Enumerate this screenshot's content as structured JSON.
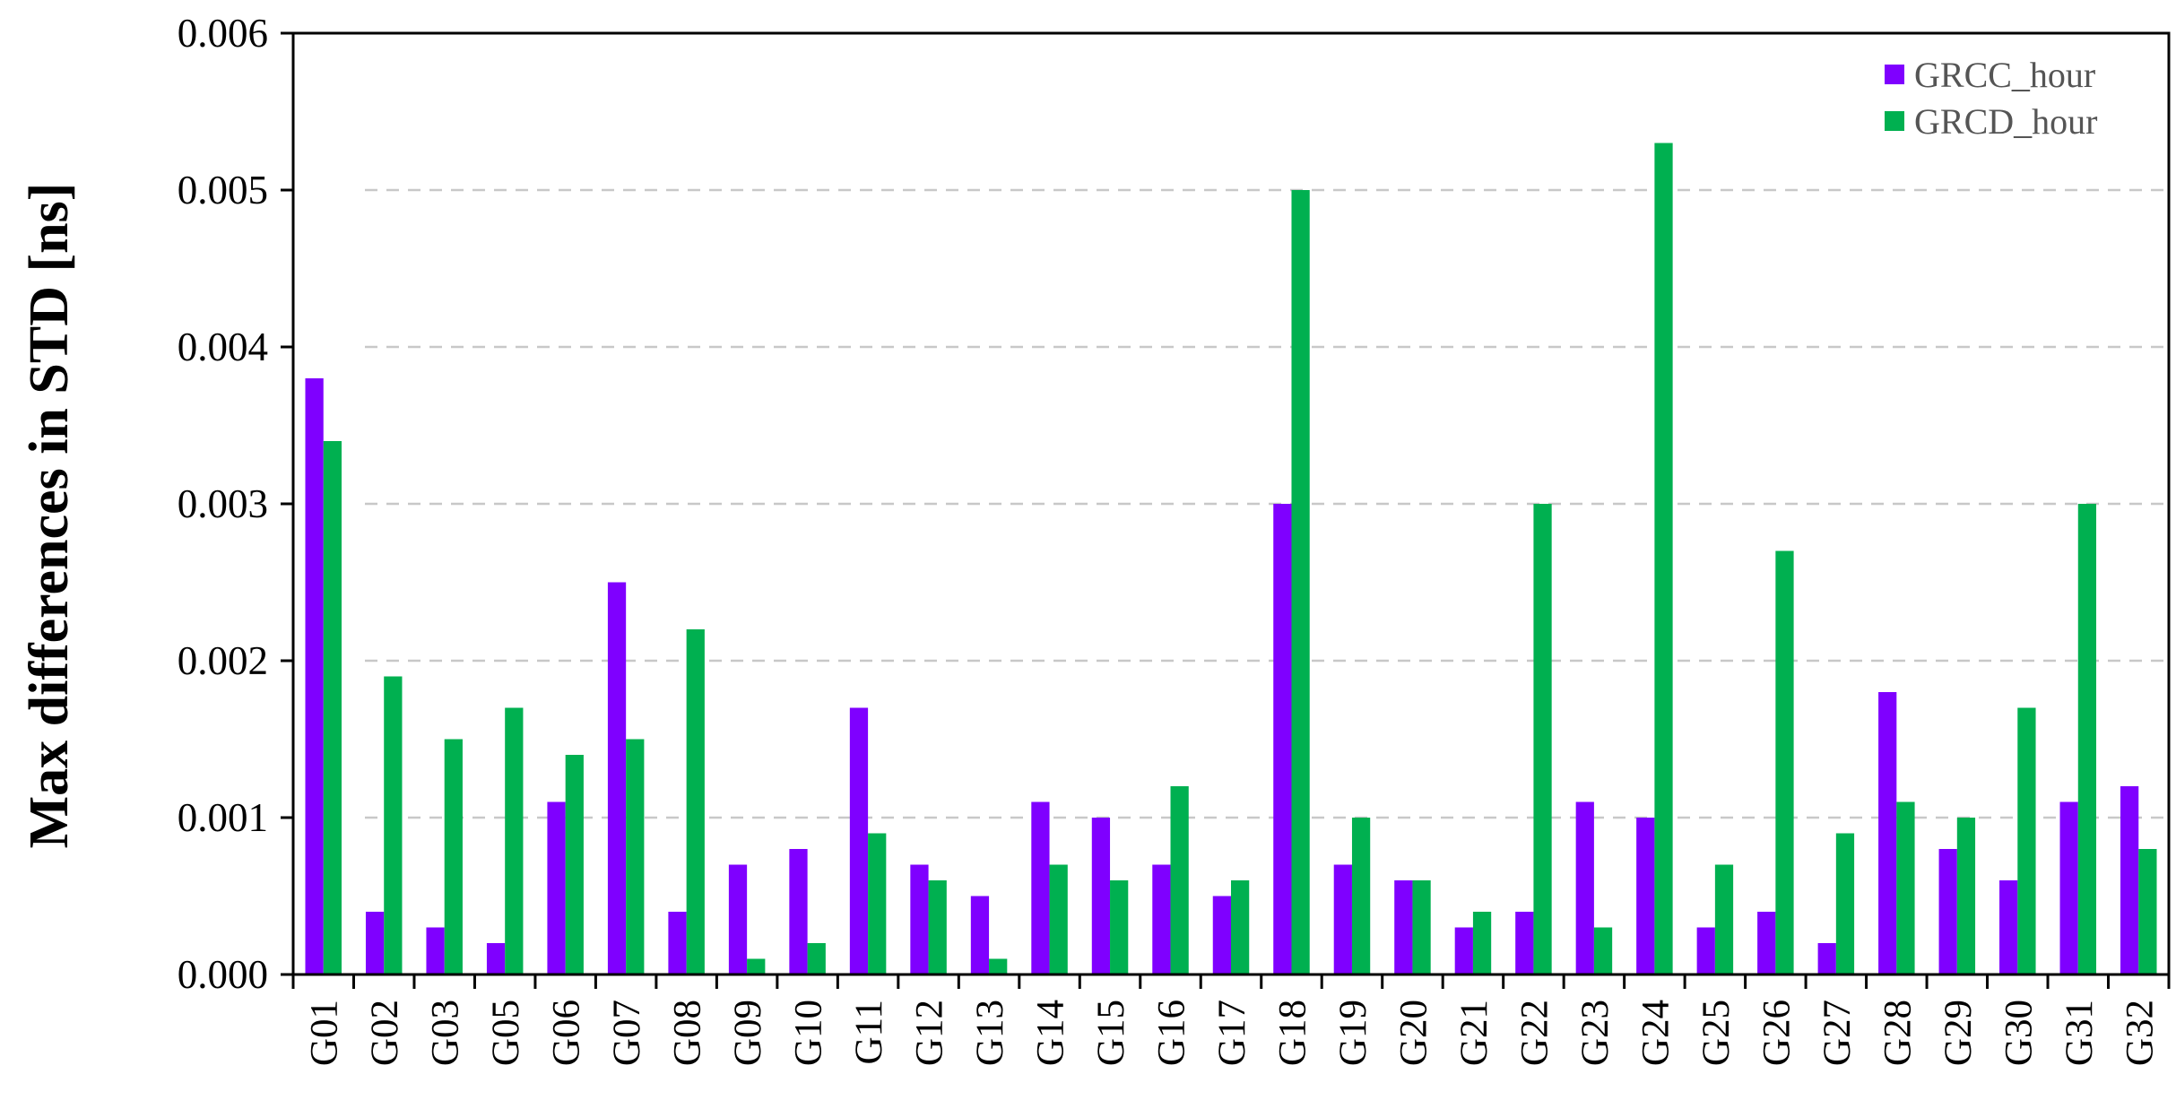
{
  "chart_data": {
    "type": "bar",
    "title": "",
    "xlabel": "",
    "ylabel": "Max differences in STD [ns]",
    "ylim": [
      0,
      0.006
    ],
    "yticks": [
      "0.000",
      "0.001",
      "0.002",
      "0.003",
      "0.004",
      "0.005",
      "0.006"
    ],
    "grid": "horizontal dashed",
    "legend_position": "top-right",
    "categories": [
      "G01",
      "G02",
      "G03",
      "G05",
      "G06",
      "G07",
      "G08",
      "G09",
      "G10",
      "G11",
      "G12",
      "G13",
      "G14",
      "G15",
      "G16",
      "G17",
      "G18",
      "G19",
      "G20",
      "G21",
      "G22",
      "G23",
      "G24",
      "G25",
      "G26",
      "G27",
      "G28",
      "G29",
      "G30",
      "G31",
      "G32"
    ],
    "series": [
      {
        "name": "GRCC_hour",
        "color": "#7F00FF",
        "values": [
          0.0038,
          0.0004,
          0.0003,
          0.0002,
          0.0011,
          0.0025,
          0.0004,
          0.0007,
          0.0008,
          0.0017,
          0.0007,
          0.0005,
          0.0011,
          0.001,
          0.0007,
          0.0005,
          0.003,
          0.0007,
          0.0006,
          0.0003,
          0.0004,
          0.0011,
          0.001,
          0.0003,
          0.0004,
          0.0002,
          0.0018,
          0.0008,
          0.0006,
          0.0011,
          0.0012
        ]
      },
      {
        "name": "GRCD_hour",
        "color": "#00B050",
        "values": [
          0.0034,
          0.0019,
          0.0015,
          0.0017,
          0.0014,
          0.0015,
          0.0022,
          0.0001,
          0.0002,
          0.0009,
          0.0006,
          0.0001,
          0.0007,
          0.0006,
          0.0012,
          0.0006,
          0.005,
          0.001,
          0.0006,
          0.0004,
          0.003,
          0.0003,
          0.0053,
          0.0007,
          0.0027,
          0.0009,
          0.0011,
          0.001,
          0.0017,
          0.003,
          0.0008
        ]
      }
    ]
  }
}
